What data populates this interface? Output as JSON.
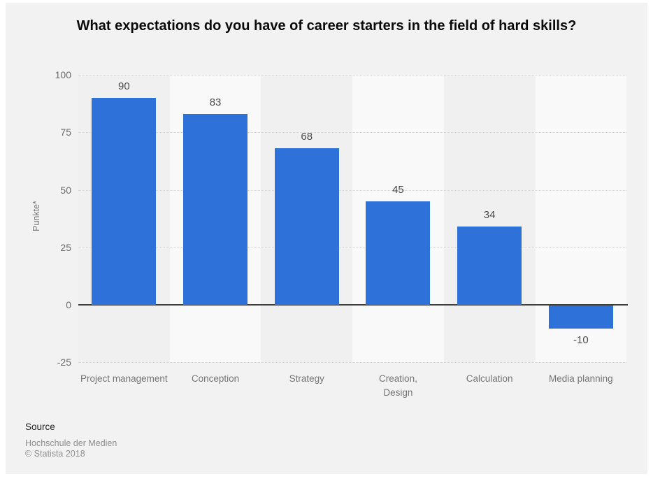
{
  "page": {
    "background": "#ffffff",
    "panel_background": "#f2f2f2"
  },
  "chart_data": {
    "type": "bar",
    "title": "What expectations do you have of career starters in the field of hard skills?",
    "ylabel": "Punkte*",
    "xlabel": "",
    "categories": [
      "Project management",
      "Conception",
      "Strategy",
      "Creation,\nDesign",
      "Calculation",
      "Media planning"
    ],
    "values": [
      90,
      83,
      68,
      45,
      34,
      -10
    ],
    "ylim": [
      -25,
      100
    ],
    "yticks": [
      100,
      75,
      50,
      25,
      0,
      -25
    ],
    "grid": "horizontal-dotted",
    "legend": "none",
    "bar_color": "#2e71d9",
    "zero_line_color": "#3f3f3f",
    "band_colors": [
      "#f0f0f0",
      "#f9f9f9"
    ]
  },
  "source": {
    "heading": "Source",
    "name": "Hochschule der Medien",
    "copyright": "© Statista 2018"
  }
}
